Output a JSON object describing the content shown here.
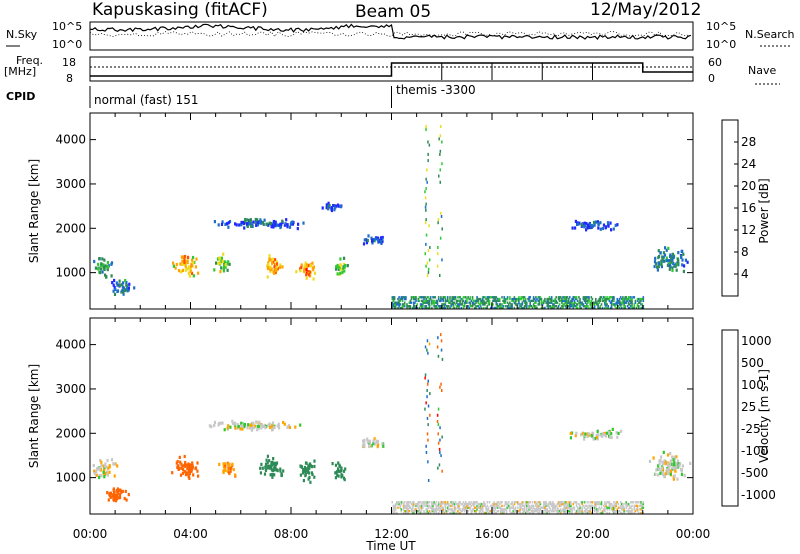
{
  "header": {
    "station": "Kapuskasing (fitACF)",
    "beam": "Beam 05",
    "date": "12/May/2012"
  },
  "left_labels": {
    "nsky": "N.Sky",
    "freq_line1": "Freq.",
    "freq_line2": "[MHz]",
    "cpid": "CPID"
  },
  "right_labels": {
    "nsearch": "N.Search",
    "nave": "Nave"
  },
  "noise_axis": {
    "left_ticks": [
      "10^5",
      "10^0"
    ],
    "right_ticks": [
      "10^5",
      "10^0"
    ]
  },
  "freq_axis": {
    "left_ticks": [
      "18",
      "8"
    ],
    "right_ticks": [
      "60",
      "0"
    ]
  },
  "cpid": {
    "first": "normal (fast) 151",
    "second": "themis -3300",
    "switch_hour": 12
  },
  "time_axis": {
    "label": "Time UT",
    "ticks": [
      "00:00",
      "04:00",
      "08:00",
      "12:00",
      "16:00",
      "20:00",
      "00:00"
    ],
    "range_hours": [
      0,
      24
    ]
  },
  "range_axis": {
    "label": "Slant Range [km]",
    "ticks": [
      "1000",
      "2000",
      "3000",
      "4000"
    ],
    "range_km": [
      180,
      4600
    ]
  },
  "power_colorbar": {
    "label": "Power [dB]",
    "ticks": [
      "4",
      "8",
      "12",
      "16",
      "20",
      "24",
      "28"
    ],
    "colors": [
      "#1e28ff",
      "#1e6ec8",
      "#2e8b57",
      "#32c832",
      "#f0dc1e",
      "#ffa500",
      "#ff5000",
      "#ff0000"
    ]
  },
  "velocity_colorbar": {
    "label": "Velocity [m s-1]",
    "ticks": [
      "1000",
      "500",
      "100",
      "25",
      "-25",
      "-100",
      "-500",
      "-1000"
    ],
    "colors": [
      "#1e28ff",
      "#1e6ec8",
      "#2e8b57",
      "#32c832",
      "#c8c8c8",
      "#ffa500",
      "#ff6400",
      "#ff0000"
    ]
  },
  "chart_data": [
    {
      "type": "heatmap",
      "title": "Power [dB]",
      "xlabel": "Time UT",
      "ylabel": "Slant Range [km]",
      "xlim": [
        0,
        24
      ],
      "ylim": [
        180,
        4600
      ],
      "blobs": [
        {
          "t": 0.5,
          "r": 1150,
          "dt": 0.5,
          "dr": 300,
          "p": 12
        },
        {
          "t": 1.3,
          "r": 700,
          "dt": 0.6,
          "dr": 250,
          "p": 8
        },
        {
          "t": 3.8,
          "r": 1200,
          "dt": 0.6,
          "dr": 320,
          "p": 22
        },
        {
          "t": 5.2,
          "r": 1250,
          "dt": 0.5,
          "dr": 250,
          "p": 16
        },
        {
          "t": 7.3,
          "r": 1200,
          "dt": 0.5,
          "dr": 320,
          "p": 22
        },
        {
          "t": 8.6,
          "r": 1100,
          "dt": 0.5,
          "dr": 280,
          "p": 24
        },
        {
          "t": 10.0,
          "r": 1150,
          "dt": 0.4,
          "dr": 250,
          "p": 16
        },
        {
          "t": 6.5,
          "r": 2150,
          "dt": 2.5,
          "dr": 150,
          "p": 6
        },
        {
          "t": 11.2,
          "r": 1750,
          "dt": 0.8,
          "dr": 150,
          "p": 6
        },
        {
          "t": 9.5,
          "r": 2500,
          "dt": 0.6,
          "dr": 150,
          "p": 6
        },
        {
          "t": 20.0,
          "r": 2100,
          "dt": 1.4,
          "dr": 150,
          "p": 6
        },
        {
          "t": 23.0,
          "r": 1300,
          "dt": 1.0,
          "dr": 350,
          "p": 10
        }
      ],
      "band": {
        "t0": 12.0,
        "t1": 22.0,
        "r0": 230,
        "r1": 480,
        "p": 10
      }
    },
    {
      "type": "heatmap",
      "title": "Velocity [m s-1]",
      "xlabel": "Time UT",
      "ylabel": "Slant Range [km]",
      "xlim": [
        0,
        24
      ],
      "ylim": [
        180,
        4600
      ],
      "blobs": [
        {
          "t": 0.5,
          "r": 1250,
          "dt": 0.6,
          "dr": 300,
          "v": 0
        },
        {
          "t": 1.1,
          "r": 650,
          "dt": 0.7,
          "dr": 250,
          "v": -250
        },
        {
          "t": 3.8,
          "r": 1250,
          "dt": 0.7,
          "dr": 350,
          "v": -250
        },
        {
          "t": 5.4,
          "r": 1250,
          "dt": 0.5,
          "dr": 250,
          "v": -80
        },
        {
          "t": 7.2,
          "r": 1250,
          "dt": 0.6,
          "dr": 350,
          "v": 150
        },
        {
          "t": 8.6,
          "r": 1200,
          "dt": 0.5,
          "dr": 300,
          "v": 150
        },
        {
          "t": 9.9,
          "r": 1200,
          "dt": 0.4,
          "dr": 250,
          "v": 200
        },
        {
          "t": 6.5,
          "r": 2200,
          "dt": 2.5,
          "dr": 150,
          "v": 0
        },
        {
          "t": 11.2,
          "r": 1800,
          "dt": 0.8,
          "dr": 150,
          "v": 0
        },
        {
          "t": 20.2,
          "r": 2000,
          "dt": 1.5,
          "dr": 150,
          "v": 0
        },
        {
          "t": 23.0,
          "r": 1300,
          "dt": 1.0,
          "dr": 400,
          "v": 0
        }
      ],
      "band": {
        "t0": 12.0,
        "t1": 22.0,
        "r0": 230,
        "r1": 480,
        "v": 0
      }
    }
  ]
}
